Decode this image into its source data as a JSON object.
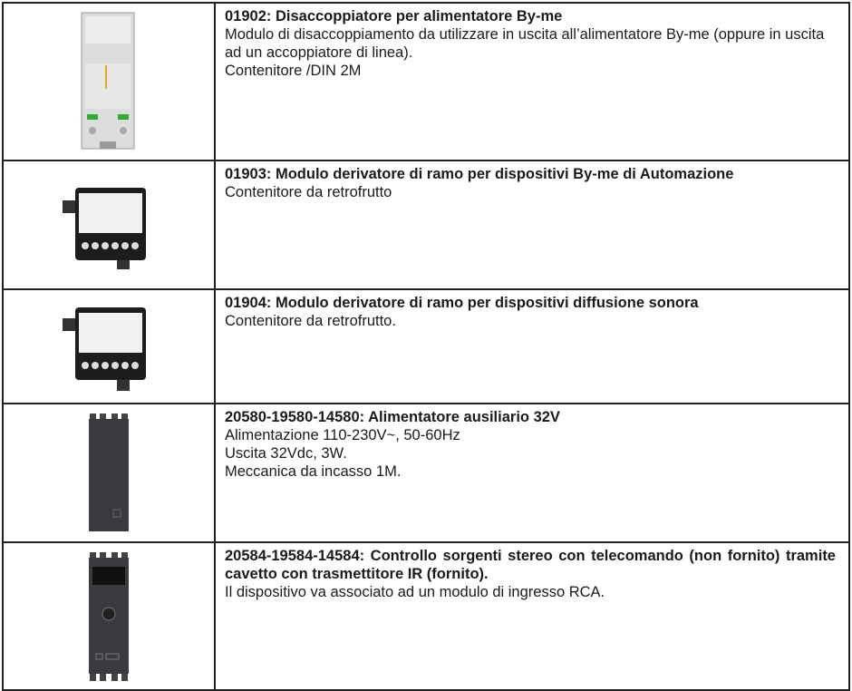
{
  "rows": [
    {
      "title": "01902: Disaccoppiatore per alimentatore By-me",
      "lines": [
        "Modulo di disaccoppiamento da utilizzare in uscita all’alimentatore By-me (oppure in uscita ad un accoppiatore di linea).",
        "Contenitore /DIN 2M"
      ]
    },
    {
      "title": "01903: Modulo derivatore di ramo per dispositivi By-me di Automazione",
      "lines": [
        "Contenitore da retrofrutto"
      ]
    },
    {
      "title": "01904: Modulo derivatore di ramo per dispositivi diffusione sonora",
      "lines": [
        "Contenitore da retrofrutto."
      ]
    },
    {
      "title": "20580-19580-14580: Alimentatore ausiliario 32V",
      "lines": [
        "Alimentazione 110-230V~, 50-60Hz",
        "Uscita 32Vdc, 3W.",
        "Meccanica da incasso 1M."
      ]
    },
    {
      "title": "20584-19584-14584: Controllo sorgenti stereo con telecomando (non fornito) tramite cavetto con trasmettitore IR (fornito).",
      "lines": [
        "Il dispositivo va associato ad un modulo di ingresso RCA."
      ]
    }
  ]
}
